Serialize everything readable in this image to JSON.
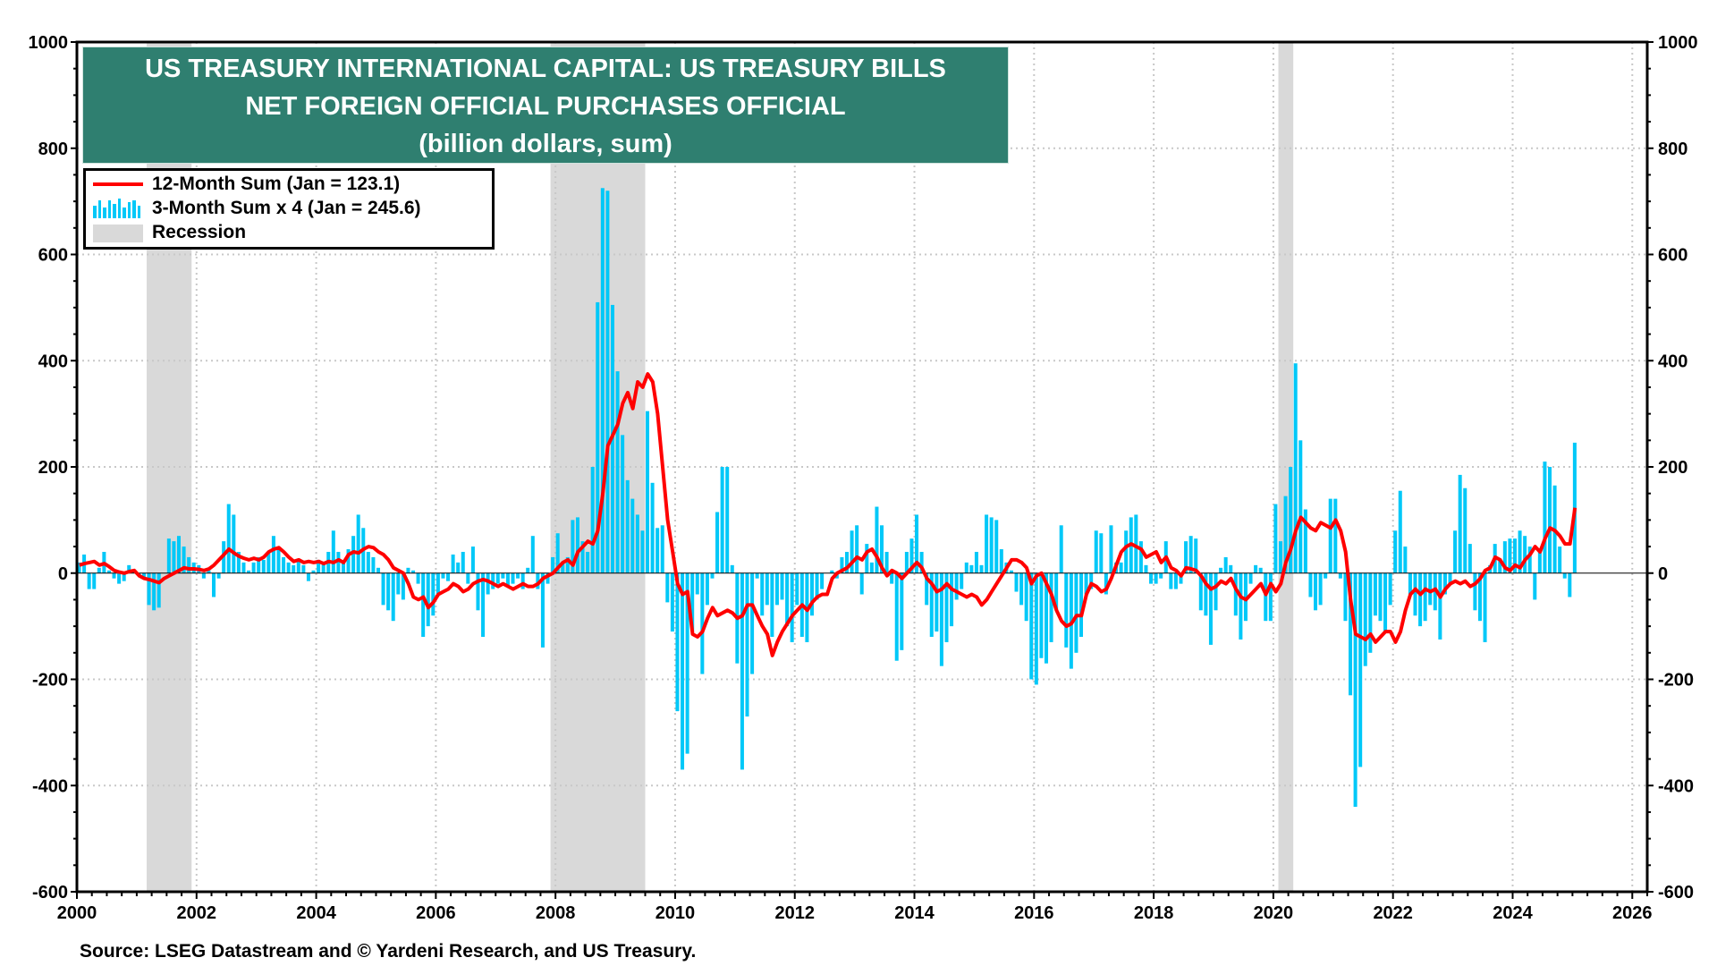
{
  "chart_data": {
    "type": "bar+line",
    "title_lines": [
      "US TREASURY INTERNATIONAL CAPITAL: US TREASURY BILLS",
      "NET FOREIGN OFFICIAL PURCHASES OFFICIAL",
      "(billion dollars, sum)"
    ],
    "source": "Source: LSEG Datastream and © Yardeni Research, and US Treasury.",
    "x_start": "2000-01",
    "x_frequency": "monthly",
    "xlim": [
      2000,
      2026.25
    ],
    "ylim": [
      -600,
      1000
    ],
    "x_ticks": [
      "2000",
      "2002",
      "2004",
      "2006",
      "2008",
      "2010",
      "2012",
      "2014",
      "2016",
      "2018",
      "2020",
      "2022",
      "2024",
      "2026"
    ],
    "y_ticks": [
      "1000",
      "800",
      "600",
      "400",
      "200",
      "0",
      "-200",
      "-400",
      "-600"
    ],
    "grid": true,
    "legend_position": "top-left",
    "legend": [
      {
        "label": "12-Month Sum (Jan = 123.1)",
        "color": "#ff0000",
        "kind": "line"
      },
      {
        "label": "3-Month Sum x 4 (Jan = 245.6)",
        "color": "#00c8f8",
        "kind": "bar"
      },
      {
        "label": "Recession",
        "color": "#d9d9d9",
        "kind": "shade"
      }
    ],
    "recessions": [
      [
        "2001-03",
        "2001-11"
      ],
      [
        "2007-12",
        "2009-06"
      ],
      [
        "2020-02",
        "2020-04"
      ]
    ],
    "series": [
      {
        "name": "3-Month Sum x 4",
        "kind": "bar",
        "color": "#00c8f8",
        "values": [
          20,
          35,
          -30,
          -30,
          10,
          40,
          5,
          -10,
          -20,
          -15,
          15,
          5,
          -5,
          -10,
          -60,
          -70,
          -65,
          0,
          65,
          60,
          70,
          50,
          30,
          20,
          15,
          -10,
          5,
          -45,
          -10,
          60,
          130,
          110,
          40,
          20,
          5,
          20,
          30,
          25,
          40,
          70,
          50,
          30,
          20,
          15,
          25,
          15,
          -15,
          5,
          25,
          20,
          40,
          80,
          40,
          20,
          45,
          70,
          110,
          85,
          40,
          30,
          10,
          -60,
          -70,
          -90,
          -40,
          -50,
          10,
          5,
          -20,
          -120,
          -100,
          -80,
          -40,
          -10,
          -15,
          35,
          20,
          40,
          -20,
          50,
          -70,
          -120,
          -40,
          -30,
          -20,
          -10,
          -25,
          -20,
          -10,
          -30,
          10,
          70,
          -30,
          -140,
          -20,
          30,
          75,
          20,
          30,
          100,
          105,
          60,
          40,
          200,
          510,
          725,
          720,
          505,
          380,
          260,
          175,
          140,
          110,
          80,
          305,
          170,
          85,
          90,
          -55,
          -110,
          -260,
          -370,
          -340,
          -110,
          -40,
          -190,
          -60,
          -10,
          115,
          200,
          200,
          15,
          -170,
          -370,
          -270,
          -190,
          -10,
          -80,
          -60,
          -120,
          -60,
          -50,
          -100,
          -130,
          -60,
          -120,
          -130,
          -80,
          -50,
          -30,
          0,
          5,
          -10,
          30,
          40,
          80,
          90,
          -40,
          55,
          20,
          125,
          90,
          40,
          -20,
          -165,
          -145,
          40,
          65,
          110,
          40,
          -60,
          -120,
          -110,
          -175,
          -130,
          -100,
          -50,
          -30,
          20,
          15,
          40,
          15,
          110,
          105,
          100,
          45,
          20,
          5,
          -35,
          -60,
          -90,
          -200,
          -210,
          -160,
          -170,
          -130,
          -70,
          90,
          -140,
          -180,
          -150,
          -120,
          -40,
          -30,
          80,
          75,
          -40,
          90,
          20,
          20,
          80,
          105,
          110,
          60,
          15,
          -20,
          -20,
          -10,
          60,
          -30,
          -30,
          -20,
          60,
          70,
          65,
          -70,
          -80,
          -135,
          -70,
          10,
          30,
          15,
          -80,
          -125,
          -90,
          -20,
          15,
          10,
          -90,
          -90,
          130,
          60,
          145,
          200,
          395,
          250,
          120,
          -45,
          -70,
          -60,
          -10,
          140,
          140,
          -10,
          -90,
          -230,
          -440,
          -365,
          -175,
          -150,
          -80,
          -90,
          -110,
          -60,
          80,
          155,
          50,
          -40,
          -80,
          -100,
          -90,
          -60,
          -70,
          -125,
          -40,
          -20,
          80,
          185,
          160,
          55,
          -70,
          -90,
          -130,
          15,
          55,
          25,
          60,
          65,
          65,
          80,
          70,
          50,
          -50,
          40,
          210,
          200,
          165,
          50,
          -10,
          -45,
          245.6
        ]
      },
      {
        "name": "12-Month Sum",
        "kind": "line",
        "color": "#ff0000",
        "values": [
          15,
          18,
          20,
          22,
          15,
          18,
          12,
          5,
          2,
          0,
          3,
          5,
          -5,
          -10,
          -12,
          -15,
          -18,
          -10,
          -5,
          0,
          5,
          10,
          8,
          8,
          7,
          5,
          8,
          15,
          25,
          35,
          45,
          38,
          32,
          28,
          25,
          28,
          25,
          30,
          40,
          45,
          48,
          40,
          30,
          22,
          25,
          20,
          22,
          20,
          22,
          18,
          22,
          20,
          25,
          20,
          35,
          40,
          38,
          45,
          50,
          48,
          40,
          35,
          25,
          10,
          5,
          0,
          -20,
          -45,
          -50,
          -45,
          -65,
          -55,
          -40,
          -35,
          -30,
          -20,
          -25,
          -35,
          -30,
          -20,
          -15,
          -12,
          -15,
          -20,
          -25,
          -20,
          -25,
          -30,
          -25,
          -20,
          -25,
          -25,
          -20,
          -10,
          -5,
          0,
          10,
          20,
          25,
          15,
          40,
          50,
          60,
          55,
          80,
          150,
          240,
          260,
          280,
          320,
          340,
          310,
          360,
          350,
          375,
          360,
          300,
          200,
          100,
          40,
          -20,
          -40,
          -35,
          -115,
          -120,
          -110,
          -85,
          -65,
          -80,
          -75,
          -70,
          -75,
          -85,
          -80,
          -60,
          -60,
          -80,
          -100,
          -115,
          -155,
          -130,
          -110,
          -95,
          -80,
          -70,
          -60,
          -70,
          -55,
          -45,
          -40,
          -40,
          -10,
          0,
          5,
          10,
          20,
          30,
          25,
          40,
          45,
          30,
          10,
          -5,
          5,
          0,
          -10,
          0,
          10,
          20,
          10,
          -10,
          -20,
          -35,
          -30,
          -20,
          -30,
          -35,
          -40,
          -45,
          -40,
          -45,
          -60,
          -50,
          -35,
          -20,
          -5,
          10,
          25,
          25,
          20,
          10,
          -20,
          -5,
          0,
          -20,
          -40,
          -70,
          -90,
          -100,
          -95,
          -80,
          -80,
          -40,
          -20,
          -25,
          -35,
          -30,
          -10,
          15,
          40,
          50,
          55,
          50,
          45,
          30,
          35,
          40,
          20,
          30,
          10,
          5,
          -5,
          10,
          8,
          5,
          -5,
          -20,
          -30,
          -25,
          -15,
          -20,
          -10,
          -30,
          -45,
          -50,
          -40,
          -30,
          -20,
          -40,
          -20,
          -35,
          -20,
          20,
          45,
          80,
          105,
          95,
          85,
          80,
          95,
          90,
          85,
          100,
          80,
          40,
          -50,
          -115,
          -120,
          -125,
          -115,
          -130,
          -120,
          -110,
          -110,
          -130,
          -110,
          -70,
          -40,
          -30,
          -40,
          -30,
          -35,
          -30,
          -45,
          -30,
          -20,
          -15,
          -20,
          -15,
          -25,
          -20,
          -10,
          5,
          10,
          30,
          25,
          10,
          5,
          15,
          10,
          25,
          35,
          50,
          40,
          65,
          85,
          80,
          70,
          55,
          55,
          123.1
        ]
      }
    ]
  }
}
